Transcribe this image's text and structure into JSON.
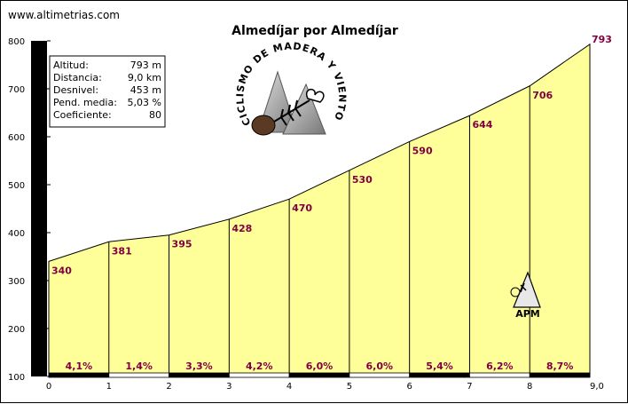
{
  "site": "www.altimetrias.com",
  "chart_data": {
    "type": "area",
    "title": "Almedíjar por Almedíjar",
    "x": [
      0,
      1,
      2,
      3,
      4,
      5,
      6,
      7,
      8,
      9
    ],
    "altitudes": [
      340,
      381,
      395,
      428,
      470,
      530,
      590,
      644,
      706,
      793
    ],
    "altitude_labels": [
      "340",
      "381",
      "395",
      "428",
      "470",
      "530",
      "590",
      "644",
      "706",
      "793"
    ],
    "gradients": [
      "4,1%",
      "1,4%",
      "3,3%",
      "4,2%",
      "6,0%",
      "6,0%",
      "5,4%",
      "6,2%",
      "8,7%"
    ],
    "x_ticks": [
      "0",
      "1",
      "2",
      "3",
      "4",
      "5",
      "6",
      "7",
      "8",
      "9,0"
    ],
    "y_ticks": [
      "100",
      "200",
      "300",
      "400",
      "500",
      "600",
      "700",
      "800"
    ],
    "xlim": [
      0,
      9
    ],
    "ylim": [
      100,
      800
    ],
    "grid": false,
    "colors": {
      "fill": "#ffff99",
      "altitude_label": "#800040",
      "gradient_label": "#800040"
    }
  },
  "info": [
    {
      "label": "Altitud:",
      "value": "793 m"
    },
    {
      "label": "Distancia:",
      "value": "9,0 km"
    },
    {
      "label": "Desnivel:",
      "value": "453 m"
    },
    {
      "label": "Pend. media:",
      "value": "5,03 %"
    },
    {
      "label": "Coeficiente:",
      "value": "80"
    }
  ],
  "logo": {
    "text": "CICLISMO DE MADERA Y VIENTO"
  },
  "badge": {
    "text": "APM"
  }
}
